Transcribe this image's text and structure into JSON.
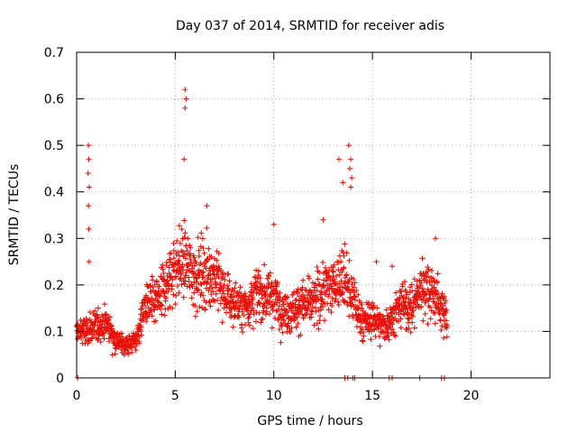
{
  "chart_data": {
    "type": "scatter",
    "title": "Day 037 of 2014, SRMTID for receiver adis",
    "xlabel": "GPS time / hours",
    "ylabel": "SRMTID / TECUs",
    "xlim": [
      0,
      24
    ],
    "ylim": [
      0,
      0.7
    ],
    "xticks": [
      0,
      5,
      10,
      15,
      20
    ],
    "yticks": [
      0,
      0.1,
      0.2,
      0.3,
      0.4,
      0.5,
      0.6,
      0.7
    ],
    "ytick_labels": [
      "0",
      "0.1",
      "0.2",
      "0.3",
      "0.4",
      "0.5",
      "0.6",
      "0.7"
    ],
    "marker": "+",
    "color": "#e8120a",
    "grid": true,
    "trend": [
      [
        0.0,
        0.1
      ],
      [
        0.5,
        0.1
      ],
      [
        1.0,
        0.11
      ],
      [
        1.5,
        0.12
      ],
      [
        2.0,
        0.08
      ],
      [
        2.5,
        0.07
      ],
      [
        3.0,
        0.08
      ],
      [
        3.5,
        0.16
      ],
      [
        4.0,
        0.16
      ],
      [
        4.5,
        0.2
      ],
      [
        5.0,
        0.24
      ],
      [
        5.5,
        0.25
      ],
      [
        6.0,
        0.22
      ],
      [
        6.5,
        0.23
      ],
      [
        7.0,
        0.22
      ],
      [
        7.5,
        0.18
      ],
      [
        8.0,
        0.16
      ],
      [
        8.5,
        0.15
      ],
      [
        9.0,
        0.18
      ],
      [
        9.5,
        0.18
      ],
      [
        10.0,
        0.18
      ],
      [
        10.5,
        0.14
      ],
      [
        11.0,
        0.15
      ],
      [
        11.5,
        0.16
      ],
      [
        12.0,
        0.16
      ],
      [
        12.5,
        0.19
      ],
      [
        13.0,
        0.2
      ],
      [
        13.5,
        0.22
      ],
      [
        14.0,
        0.17
      ],
      [
        14.5,
        0.12
      ],
      [
        15.0,
        0.13
      ],
      [
        15.5,
        0.11
      ],
      [
        16.0,
        0.13
      ],
      [
        16.5,
        0.16
      ],
      [
        17.0,
        0.15
      ],
      [
        17.5,
        0.2
      ],
      [
        18.0,
        0.19
      ],
      [
        18.5,
        0.15
      ],
      [
        18.8,
        0.13
      ]
    ],
    "spikes": [
      [
        0.6,
        0.5
      ],
      [
        0.62,
        0.47
      ],
      [
        0.58,
        0.44
      ],
      [
        0.64,
        0.41
      ],
      [
        0.6,
        0.37
      ],
      [
        0.62,
        0.32
      ],
      [
        0.63,
        0.25
      ],
      [
        5.5,
        0.62
      ],
      [
        5.55,
        0.6
      ],
      [
        5.5,
        0.58
      ],
      [
        5.45,
        0.47
      ],
      [
        13.3,
        0.47
      ],
      [
        13.5,
        0.42
      ],
      [
        13.8,
        0.5
      ],
      [
        13.9,
        0.47
      ],
      [
        13.85,
        0.45
      ],
      [
        13.95,
        0.43
      ],
      [
        13.9,
        0.41
      ],
      [
        15.2,
        0.25
      ],
      [
        16.0,
        0.24
      ],
      [
        18.2,
        0.3
      ],
      [
        10.0,
        0.33
      ],
      [
        12.5,
        0.34
      ],
      [
        6.6,
        0.37
      ]
    ],
    "zero_points": [
      [
        0.05,
        0.0
      ],
      [
        13.6,
        0.0
      ],
      [
        13.75,
        0.0
      ],
      [
        14.0,
        0.0
      ],
      [
        14.1,
        0.0
      ],
      [
        15.85,
        0.0
      ],
      [
        16.0,
        0.0
      ],
      [
        17.4,
        0.0
      ],
      [
        18.5,
        0.0
      ],
      [
        18.65,
        0.0
      ]
    ]
  }
}
